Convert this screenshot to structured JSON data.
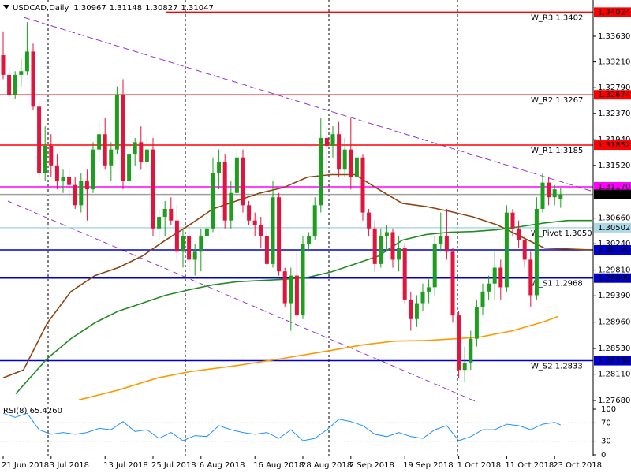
{
  "chart_data": {
    "type": "candlestick",
    "symbol": "USDCAD,Daily",
    "categories": [
      "21 Jun 2018",
      null,
      null,
      null,
      null,
      null,
      null,
      null,
      "3 Jul 2018",
      null,
      null,
      null,
      null,
      null,
      null,
      null,
      null,
      "13 Jul 2018",
      null,
      null,
      null,
      null,
      null,
      null,
      null,
      "25 Jul 2018",
      null,
      null,
      null,
      null,
      null,
      null,
      null,
      "6 Aug 2018",
      null,
      null,
      null,
      null,
      null,
      null,
      null,
      null,
      "16 Aug 2018",
      null,
      null,
      null,
      null,
      null,
      null,
      null,
      "28 Aug 2018",
      null,
      null,
      null,
      null,
      null,
      null,
      null,
      "7 Sep 2018",
      null,
      null,
      null,
      null,
      null,
      null,
      null,
      null,
      "19 Sep 2018",
      null,
      null,
      null,
      null,
      null,
      null,
      null,
      null,
      "1 Oct 2018",
      null,
      null,
      null,
      null,
      null,
      null,
      null,
      "11 Oct 2018",
      null,
      null,
      null,
      null,
      null,
      null,
      null,
      "23 Oct 2018",
      null
    ],
    "open": [
      1.3332,
      1.33,
      1.3268,
      1.33,
      1.3306,
      1.3338,
      1.3248,
      1.3139,
      1.3184,
      1.3152,
      1.3126,
      1.3133,
      1.312,
      1.3087,
      1.3126,
      1.3113,
      1.3178,
      1.3203,
      1.3152,
      1.3178,
      1.3268,
      1.3126,
      1.3171,
      1.319,
      1.3158,
      1.3178,
      1.3049,
      1.3068,
      1.3081,
      1.3062,
      1.3011,
      1.3036,
      1.2998,
      1.3011,
      1.3036,
      1.3049,
      1.3139,
      1.3158,
      1.3062,
      1.3107,
      1.3165,
      1.3087,
      1.3062,
      1.3055,
      1.3036,
      1.2991,
      1.31,
      1.2979,
      1.2927,
      1.2972,
      1.2907,
      1.3023,
      1.3036,
      1.3087,
      1.3197,
      1.3184,
      1.3203,
      1.3145,
      1.3178,
      1.3133,
      1.3165,
      1.3075,
      1.3049,
      1.2991,
      1.3036,
      1.3043,
      1.2998,
      1.3017,
      1.2933,
      1.2901,
      1.2927,
      1.2946,
      1.2953,
      1.3023,
      1.3036,
      1.3011,
      1.2907,
      1.2818,
      1.283,
      1.2869,
      1.292,
      1.2946,
      1.2959,
      1.2985,
      1.2953,
      1.3075,
      1.3049,
      1.303,
      1.2998,
      1.294,
      1.3081,
      1.3124,
      1.31,
      1.30967
    ],
    "high": [
      1.3371,
      1.3313,
      1.3306,
      1.3326,
      1.3386,
      1.3351,
      1.3255,
      1.3216,
      1.3203,
      1.3171,
      1.3145,
      1.3145,
      1.3133,
      1.3139,
      1.3145,
      1.319,
      1.3223,
      1.3229,
      1.319,
      1.3281,
      1.3293,
      1.319,
      1.3197,
      1.3216,
      1.3197,
      1.3197,
      1.3081,
      1.3094,
      1.31,
      1.3087,
      1.3049,
      1.3062,
      1.3023,
      1.3049,
      1.3075,
      1.3165,
      1.3178,
      1.3171,
      1.3126,
      1.3178,
      1.3178,
      1.3094,
      1.3075,
      1.3068,
      1.3049,
      1.3126,
      1.3107,
      1.2985,
      1.2985,
      1.3011,
      1.3036,
      1.3043,
      1.31,
      1.3229,
      1.3216,
      1.3216,
      1.3223,
      1.3197,
      1.3229,
      1.3184,
      1.3171,
      1.3081,
      1.3062,
      1.3049,
      1.3055,
      1.3049,
      1.3036,
      1.3023,
      1.2946,
      1.294,
      1.2959,
      1.2966,
      1.3036,
      1.3075,
      1.3081,
      1.3017,
      1.2914,
      1.2856,
      1.2882,
      1.2933,
      1.2959,
      1.2972,
      1.3011,
      1.2998,
      1.3087,
      1.3081,
      1.3062,
      1.3036,
      1.3011,
      1.31,
      1.3139,
      1.3133,
      1.312,
      1.31148
    ],
    "low": [
      1.3293,
      1.3261,
      1.3261,
      1.3281,
      1.33,
      1.3242,
      1.3133,
      1.3126,
      1.3133,
      1.3113,
      1.3107,
      1.31,
      1.3081,
      1.3075,
      1.3062,
      1.3107,
      1.3158,
      1.3145,
      1.3126,
      1.3171,
      1.3113,
      1.3113,
      1.3152,
      1.3145,
      1.3145,
      1.3036,
      1.303,
      1.3036,
      1.3055,
      1.2998,
      1.2985,
      1.2979,
      1.2972,
      1.2979,
      1.3023,
      1.3043,
      1.3113,
      1.3049,
      1.3049,
      1.3094,
      1.3075,
      1.3055,
      1.3036,
      1.3017,
      1.2985,
      1.2985,
      1.2972,
      1.292,
      1.2882,
      1.2901,
      1.2901,
      1.3011,
      1.303,
      1.3075,
      1.3139,
      1.3165,
      1.3133,
      1.3133,
      1.3113,
      1.3126,
      1.3062,
      1.3036,
      1.2979,
      1.2985,
      1.3011,
      1.2985,
      1.2979,
      1.2927,
      1.2882,
      1.2888,
      1.2914,
      1.2927,
      1.294,
      1.3011,
      1.2998,
      1.2895,
      1.2805,
      1.2798,
      1.2818,
      1.2856,
      1.2907,
      1.2933,
      1.2933,
      1.2933,
      1.2946,
      1.3036,
      1.3017,
      1.2985,
      1.292,
      1.2933,
      1.3075,
      1.3087,
      1.3087,
      1.30827
    ],
    "close": [
      1.33,
      1.3268,
      1.33,
      1.3306,
      1.3338,
      1.3248,
      1.3139,
      1.3184,
      1.3152,
      1.3126,
      1.3133,
      1.312,
      1.3087,
      1.3126,
      1.3113,
      1.3178,
      1.3203,
      1.3152,
      1.3178,
      1.3268,
      1.3126,
      1.3171,
      1.319,
      1.3158,
      1.3178,
      1.3049,
      1.3068,
      1.3081,
      1.3062,
      1.3011,
      1.3036,
      1.2998,
      1.3011,
      1.3036,
      1.3049,
      1.3139,
      1.3158,
      1.3062,
      1.3107,
      1.3165,
      1.3087,
      1.3062,
      1.3055,
      1.3036,
      1.2991,
      1.31,
      1.2979,
      1.2927,
      1.2972,
      1.2907,
      1.3023,
      1.3036,
      1.3087,
      1.3197,
      1.3184,
      1.3203,
      1.3145,
      1.3178,
      1.3133,
      1.3165,
      1.3075,
      1.3049,
      1.2991,
      1.3036,
      1.3043,
      1.2998,
      1.3017,
      1.2933,
      1.2901,
      1.2927,
      1.2946,
      1.2953,
      1.3023,
      1.3036,
      1.3011,
      1.2907,
      1.2818,
      1.283,
      1.2869,
      1.292,
      1.2946,
      1.2959,
      1.2985,
      1.2953,
      1.3075,
      1.3049,
      1.303,
      1.2998,
      1.294,
      1.3081,
      1.3124,
      1.31,
      1.3113,
      1.31047
    ],
    "up_color": "#1e9e1e",
    "down_color": "#e0143c",
    "ylim": [
      1.27629,
      1.34222
    ],
    "yticks": [
      {
        "value": 1.3363,
        "label": "1.33630"
      },
      {
        "value": 1.3321,
        "label": "1.33210"
      },
      {
        "value": 1.3279,
        "label": "1.32790"
      },
      {
        "value": 1.3237,
        "label": "1.32370"
      },
      {
        "value": 1.3194,
        "label": "1.31940"
      },
      {
        "value": 1.3152,
        "label": "1.31520"
      },
      {
        "value": 1.3066,
        "label": "1.30660"
      },
      {
        "value": 1.3024,
        "label": "1.30240"
      },
      {
        "value": 1.2981,
        "label": "1.29810"
      },
      {
        "value": 1.2939,
        "label": "1.29390"
      },
      {
        "value": 1.2896,
        "label": "1.28960"
      },
      {
        "value": 1.2853,
        "label": "1.28530"
      },
      {
        "value": 1.2811,
        "label": "1.28110"
      },
      {
        "value": 1.2768,
        "label": "1.27680"
      }
    ],
    "levels": [
      {
        "value": 1.34024,
        "color": "#ff0000",
        "box_color": "#ff0000",
        "note": "W_R3 1.3402"
      },
      {
        "value": 1.32674,
        "color": "#ff0000",
        "box_color": "#ff0000",
        "note": "W_R2 1.3267"
      },
      {
        "value": 1.31852,
        "color": "#ff0000",
        "box_color": "#ff0000",
        "note": "W_R1 1.3185"
      },
      {
        "value": 1.3117,
        "label": "1.31170",
        "color": "#ff00ff",
        "box_color": "#ff00ff"
      },
      {
        "value": 1.31047,
        "color": "#a0a0a0",
        "box_color": "#000000"
      },
      {
        "value": 1.30502,
        "color": "#add8e6",
        "box_color": "#add8e6",
        "note": "W_Pivot 1.3050"
      },
      {
        "value": 1.3014,
        "label": "1.30140",
        "color": "#0000cd",
        "box_color": "#0000cd"
      },
      {
        "value": 1.2968,
        "label": "1.29680",
        "color": "#0000cd",
        "box_color": "#0000cd",
        "note": "W_S1 1.2968"
      },
      {
        "value": 1.2833,
        "label": "1.28330",
        "color": "#0000cd",
        "box_color": "#0000cd",
        "note": "W_S2 1.2833"
      }
    ],
    "moving_averages": [
      {
        "color": "#8b4513",
        "x": [
          0,
          3.4,
          7.4,
          11.3,
          15.3,
          19.2,
          23.2,
          27.1,
          31.1,
          35,
          38.9,
          42.9,
          46.8,
          50.8,
          54.7,
          58.7,
          62.6,
          66.6,
          70.5,
          74.5,
          78.4,
          82.4,
          86.3,
          90.3,
          98.2
        ],
        "values": [
          1.2805,
          1.2818,
          1.2895,
          1.2946,
          1.2972,
          1.2985,
          1.3004,
          1.303,
          1.3055,
          1.3081,
          1.3094,
          1.3107,
          1.3116,
          1.3133,
          1.3137,
          1.3137,
          1.3113,
          1.309,
          1.3085,
          1.3077,
          1.3068,
          1.3055,
          1.3036,
          1.3017,
          1.3014
        ]
      },
      {
        "color": "#228b22",
        "x": [
          2.1,
          7.4,
          11.3,
          15.3,
          19.2,
          23.2,
          27.1,
          31.1,
          35,
          38.9,
          42.9,
          46.8,
          50.8,
          54.7,
          58.7,
          62.6,
          66.6,
          70.5,
          74.5,
          78.4,
          82.4,
          86.3,
          90.3,
          94.2,
          98.2
        ],
        "values": [
          1.2779,
          1.2837,
          1.2869,
          1.2895,
          1.2914,
          1.2927,
          1.294,
          1.2949,
          1.2957,
          1.2962,
          1.2964,
          1.2966,
          1.2969,
          1.2978,
          1.2991,
          1.3004,
          1.303,
          1.3039,
          1.3043,
          1.3044,
          1.3047,
          1.3052,
          1.3058,
          1.3062,
          1.3062
        ]
      },
      {
        "color": "#ff9900",
        "x": [
          12.6,
          19.2,
          25.8,
          31.1,
          38.9,
          46.8,
          54.7,
          60,
          65.3,
          70.5,
          75.8,
          79.7,
          85,
          90.3,
          92.5
        ],
        "values": [
          1.2769,
          1.2785,
          1.2805,
          1.2815,
          1.2825,
          1.2837,
          1.285,
          1.2859,
          1.2865,
          1.2866,
          1.2869,
          1.2872,
          1.2882,
          1.2897,
          1.2905
        ]
      }
    ],
    "rsi": {
      "title": "RSI(8) 65.4260",
      "color": "#1e90ff",
      "ylim": [
        0,
        100
      ],
      "yticks": [
        100,
        70,
        30,
        0
      ],
      "x": [
        0,
        2,
        4,
        6,
        8,
        10,
        12,
        14,
        16,
        18,
        20,
        22,
        24,
        26,
        28,
        30,
        32,
        34,
        36,
        38,
        40,
        42,
        44,
        46,
        48,
        50,
        52,
        54,
        56,
        58,
        60,
        62,
        64,
        66,
        68,
        70,
        72,
        74,
        76,
        78,
        80,
        82,
        84,
        86,
        88,
        90,
        92,
        93
      ],
      "values": [
        91,
        82,
        91,
        55,
        45,
        49,
        45,
        49,
        58,
        55,
        73,
        51,
        55,
        36,
        49,
        31,
        42,
        40,
        64,
        55,
        49,
        45,
        49,
        36,
        55,
        31,
        36,
        55,
        78,
        73,
        64,
        45,
        40,
        49,
        40,
        36,
        55,
        64,
        31,
        40,
        55,
        55,
        67,
        64,
        55,
        67,
        71,
        65.426
      ]
    }
  }
}
